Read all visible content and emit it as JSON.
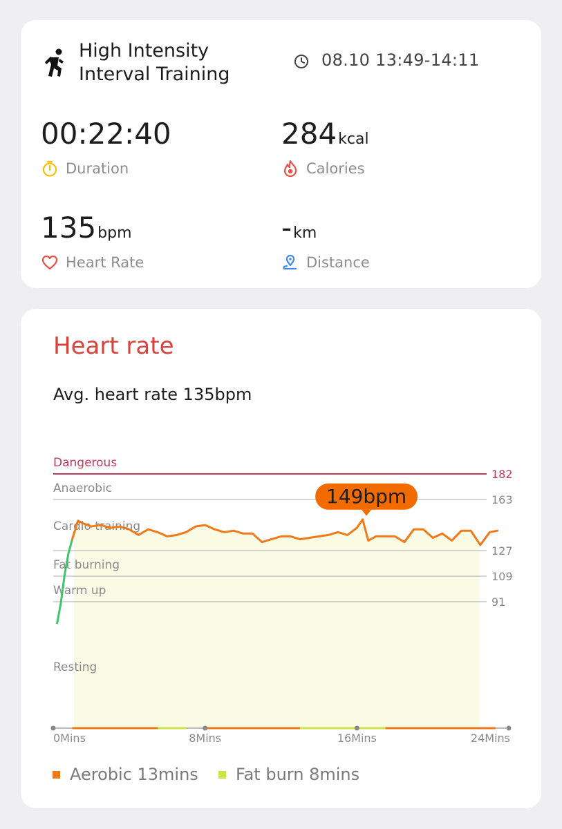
{
  "workout": {
    "title": "High Intensity Interval Training",
    "time": "08.10 13:49-14:11",
    "icon": "running-icon"
  },
  "metrics": [
    {
      "value": "00:22:40",
      "unit": "",
      "label": "Duration",
      "icon": "stopwatch-icon",
      "color": "#f2c200"
    },
    {
      "value": "284",
      "unit": "kcal",
      "label": "Calories",
      "icon": "flame-icon",
      "color": "#e8504a"
    },
    {
      "value": "135",
      "unit": "bpm",
      "label": "Heart Rate",
      "icon": "heart-icon",
      "color": "#e8504a"
    },
    {
      "value": "-",
      "unit": "km",
      "label": "Distance",
      "icon": "location-pin-icon",
      "color": "#3d8be6"
    }
  ],
  "heart_rate": {
    "title": "Heart rate",
    "avg_text": "Avg. heart rate 135bpm",
    "legend": [
      {
        "label": "Aerobic 13mins",
        "color": "#f07a1a"
      },
      {
        "label": "Fat burn 8mins",
        "color": "#cfe24a"
      }
    ]
  },
  "chart_data": {
    "type": "line",
    "y_ticks": [
      91,
      109,
      127,
      163,
      182
    ],
    "zones": [
      {
        "name": "Dangerous",
        "threshold": 182,
        "color": "#c23a5e"
      },
      {
        "name": "Anaerobic",
        "threshold": 163,
        "color": "#c8c8c8"
      },
      {
        "name": "Cardio training",
        "threshold": 145,
        "color": "#c8c8c8"
      },
      {
        "name": "Fat burning",
        "threshold": 127,
        "color": "#c8c8c8"
      },
      {
        "name": "Warm up",
        "threshold": 109,
        "color": "#c8c8c8"
      },
      {
        "name": "Resting",
        "threshold": 91,
        "color": "#c8c8c8"
      }
    ],
    "x_ticks": [
      "0Mins",
      "8Mins",
      "16Mins",
      "24Mins"
    ],
    "x_range": [
      0,
      24
    ],
    "y_range": [
      0,
      182
    ],
    "peak_label": "149bpm",
    "peak": {
      "x": 16.5,
      "y": 149
    },
    "colors": {
      "line": "#f07a1a",
      "warmup_line": "#3fc56a",
      "fill": "#fafbe5",
      "marker": "#f26b00"
    },
    "series": [
      {
        "x": [
          0.2,
          0.4,
          0.6,
          0.8,
          1.0
        ],
        "y": [
          75,
          90,
          110,
          125,
          135
        ]
      },
      {
        "x": [
          1.0,
          1.3,
          1.6,
          2.0,
          2.5,
          3.0,
          3.5,
          4.0,
          4.5,
          5.0,
          5.5,
          6.0,
          6.5,
          7.0,
          7.5,
          8.0,
          8.5,
          9.0,
          9.5,
          10.0,
          10.5,
          11.0,
          11.5,
          12.0,
          12.5,
          13.0,
          13.5,
          14.0,
          14.5,
          15.0,
          15.5,
          16.0,
          16.3,
          16.6,
          17.0,
          17.5,
          18.0,
          18.5,
          19.0,
          19.5,
          20.0,
          20.5,
          21.0,
          21.5,
          22.0,
          22.5,
          23.0,
          23.4
        ],
        "y": [
          135,
          148,
          146,
          144,
          145,
          143,
          144,
          142,
          138,
          142,
          140,
          137,
          138,
          140,
          144,
          145,
          142,
          140,
          141,
          139,
          139,
          133,
          135,
          137,
          137,
          135,
          136,
          137,
          138,
          140,
          138,
          143,
          149,
          134,
          137,
          137,
          137,
          133,
          142,
          142,
          136,
          139,
          134,
          141,
          141,
          131,
          140,
          141
        ]
      }
    ]
  }
}
